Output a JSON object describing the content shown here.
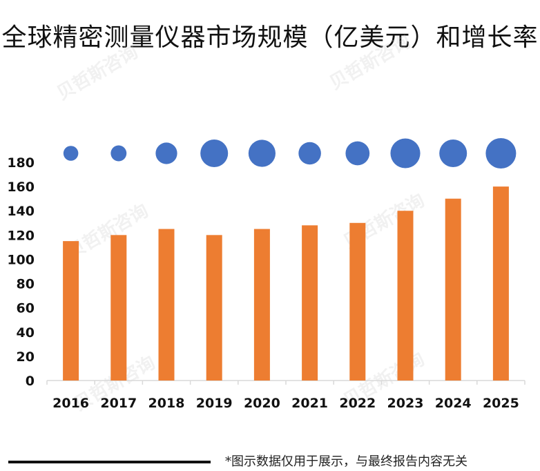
{
  "title": "全球精密测量仪器市场规模（亿美元）和增长率",
  "footnote": "*图示数据仅用于展示，与最终报告内容无关",
  "watermark": "贝哲斯咨询",
  "colors": {
    "bar": "#ED7D31",
    "bubble": "#4472C4",
    "axis": "#D9D9D9",
    "text": "#111111"
  },
  "chart_data": {
    "type": "bar",
    "title": "全球精密测量仪器市场规模（亿美元）和增长率",
    "categories": [
      "2016",
      "2017",
      "2018",
      "2019",
      "2020",
      "2021",
      "2022",
      "2023",
      "2024",
      "2025"
    ],
    "series": [
      {
        "name": "市场规模（亿美元）",
        "type": "bar",
        "values": [
          115,
          120,
          125,
          120,
          125,
          128,
          130,
          140,
          150,
          160
        ]
      },
      {
        "name": "增长率",
        "type": "bubble",
        "relative_size": [
          0.49,
          0.52,
          0.71,
          0.91,
          0.89,
          0.74,
          0.79,
          0.98,
          0.91,
          1.0
        ]
      }
    ],
    "ylim": [
      0,
      180
    ],
    "yticks": [
      0,
      20,
      40,
      60,
      80,
      100,
      120,
      140,
      160,
      180
    ],
    "xlabel": "",
    "ylabel": ""
  }
}
